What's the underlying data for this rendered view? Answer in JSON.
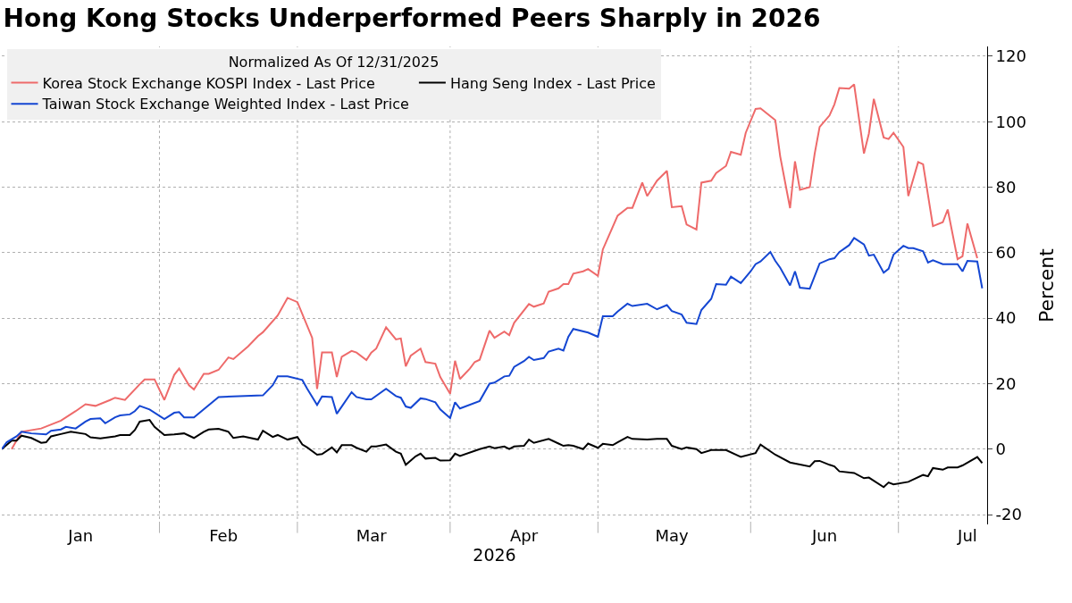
{
  "chart_data": {
    "type": "line",
    "title": "Hong Kong Stocks Underperformed Peers Sharply in 2026",
    "xlabel": "2026",
    "ylabel": "Percent",
    "legend_title": "Normalized As Of 12/31/2025",
    "legend": "top left",
    "grid": true,
    "line_style": "solid",
    "xlim": [
      "2025-12-31",
      "2026-07-19"
    ],
    "ylim": [
      -23,
      123
    ],
    "yticks": [
      -20,
      0,
      20,
      40,
      60,
      80,
      100,
      120
    ],
    "xticks": [
      {
        "value": "2026-01-16",
        "label": "Jan"
      },
      {
        "value": "2026-02-14",
        "label": "Feb"
      },
      {
        "value": "2026-03-16",
        "label": "Mar"
      },
      {
        "value": "2026-04-16",
        "label": "Apr"
      },
      {
        "value": "2026-05-16",
        "label": "May"
      },
      {
        "value": "2026-06-16",
        "label": "Jun"
      },
      {
        "value": "2026-07-15",
        "label": "Jul"
      },
      {
        "value": "2026-02-01",
        "label": null
      },
      {
        "value": "2026-03-01",
        "label": null
      },
      {
        "value": "2026-04-01",
        "label": null
      },
      {
        "value": "2026-05-01",
        "label": null
      },
      {
        "value": "2026-06-01",
        "label": null
      },
      {
        "value": "2026-07-01",
        "label": null
      }
    ],
    "series": [
      {
        "name": "Korea Stock Exchange KOSPI Index - Last Price",
        "color": "#ee6a6a",
        "x": [
          "2026-01-02",
          "2026-01-04",
          "2026-01-08",
          "2026-01-12",
          "2026-01-15",
          "2026-01-17",
          "2026-01-19",
          "2026-01-22",
          "2026-01-23",
          "2026-01-25",
          "2026-01-28",
          "2026-01-29",
          "2026-01-31",
          "2026-02-02",
          "2026-02-04",
          "2026-02-05",
          "2026-02-07",
          "2026-02-08",
          "2026-02-10",
          "2026-02-11",
          "2026-02-13",
          "2026-02-15",
          "2026-02-16",
          "2026-02-19",
          "2026-02-21",
          "2026-02-22",
          "2026-02-25",
          "2026-02-27",
          "2026-03-01",
          "2026-03-04",
          "2026-03-05",
          "2026-03-06",
          "2026-03-08",
          "2026-03-09",
          "2026-03-10",
          "2026-03-12",
          "2026-03-13",
          "2026-03-15",
          "2026-03-16",
          "2026-03-17",
          "2026-03-19",
          "2026-03-21",
          "2026-03-22",
          "2026-03-23",
          "2026-03-24",
          "2026-03-26",
          "2026-03-27",
          "2026-03-29",
          "2026-03-30",
          "2026-04-01",
          "2026-04-02",
          "2026-04-03",
          "2026-04-05",
          "2026-04-06",
          "2026-04-07",
          "2026-04-09",
          "2026-04-10",
          "2026-04-12",
          "2026-04-13",
          "2026-04-14",
          "2026-04-17",
          "2026-04-18",
          "2026-04-20",
          "2026-04-21",
          "2026-04-23",
          "2026-04-24",
          "2026-04-25",
          "2026-04-26",
          "2026-04-28",
          "2026-04-29",
          "2026-05-01",
          "2026-05-02",
          "2026-05-05",
          "2026-05-07",
          "2026-05-08",
          "2026-05-10",
          "2026-05-11",
          "2026-05-13",
          "2026-05-15",
          "2026-05-16",
          "2026-05-18",
          "2026-05-19",
          "2026-05-21",
          "2026-05-22",
          "2026-05-24",
          "2026-05-25",
          "2026-05-27",
          "2026-05-28",
          "2026-05-30",
          "2026-05-31",
          "2026-06-02",
          "2026-06-03",
          "2026-06-06",
          "2026-06-07",
          "2026-06-09",
          "2026-06-10",
          "2026-06-11",
          "2026-06-13",
          "2026-06-14",
          "2026-06-15",
          "2026-06-17",
          "2026-06-18",
          "2026-06-19",
          "2026-06-21",
          "2026-06-22",
          "2026-06-24",
          "2026-06-25",
          "2026-06-26",
          "2026-06-28",
          "2026-06-29",
          "2026-06-30",
          "2026-07-02",
          "2026-07-03",
          "2026-07-05",
          "2026-07-06",
          "2026-07-08",
          "2026-07-10",
          "2026-07-11",
          "2026-07-13",
          "2026-07-14",
          "2026-07-15",
          "2026-07-17"
        ],
        "values": [
          0,
          5.3,
          6.3,
          8.7,
          11.6,
          13.7,
          13.2,
          15,
          15.7,
          15,
          19.8,
          21.3,
          21.3,
          15,
          22.7,
          24.6,
          19.5,
          18.2,
          23,
          23,
          24.2,
          28,
          27.5,
          31.4,
          34.5,
          35.7,
          40.8,
          46.2,
          44.9,
          34,
          18.4,
          29.5,
          29.5,
          22,
          28.2,
          30,
          29.5,
          27.2,
          29.5,
          30.7,
          37.2,
          33.5,
          33.8,
          25.3,
          28.5,
          30.7,
          26.6,
          26.1,
          22,
          16.9,
          27,
          21.4,
          24.6,
          26.6,
          27.3,
          36.2,
          34,
          35.9,
          34.8,
          38.6,
          44.3,
          43.5,
          44.5,
          48.1,
          49.1,
          50.4,
          50.4,
          53.6,
          54.3,
          55,
          52.9,
          61,
          71.3,
          73.7,
          73.7,
          81.4,
          77.3,
          82,
          85,
          73.9,
          74.2,
          68.6,
          67.1,
          81.4,
          82,
          84.3,
          86.5,
          90.8,
          89.9,
          96.6,
          103.9,
          104.1,
          100.5,
          89.4,
          73.6,
          87.9,
          79.2,
          80,
          90.3,
          98.4,
          101.9,
          105.3,
          110.3,
          110.1,
          111.4,
          90.3,
          96.4,
          107,
          95.2,
          94.7,
          96.6,
          92.3,
          77.3,
          87.7,
          87,
          68.1,
          69.3,
          73.2,
          58,
          58.9,
          68.9,
          58.3
        ]
      },
      {
        "name": "Hang Seng Index - Last Price",
        "color": "#000000",
        "x": [
          "2025-12-31",
          "2026-01-02",
          "2026-01-03",
          "2026-01-04",
          "2026-01-06",
          "2026-01-08",
          "2026-01-09",
          "2026-01-10",
          "2026-01-12",
          "2026-01-14",
          "2026-01-17",
          "2026-01-18",
          "2026-01-20",
          "2026-01-23",
          "2026-01-24",
          "2026-01-26",
          "2026-01-27",
          "2026-01-28",
          "2026-01-30",
          "2026-01-31",
          "2026-02-02",
          "2026-02-04",
          "2026-02-06",
          "2026-02-08",
          "2026-02-10",
          "2026-02-11",
          "2026-02-13",
          "2026-02-15",
          "2026-02-16",
          "2026-02-18",
          "2026-02-21",
          "2026-02-22",
          "2026-02-24",
          "2026-02-25",
          "2026-02-27",
          "2026-03-01",
          "2026-03-02",
          "2026-03-03",
          "2026-03-05",
          "2026-03-06",
          "2026-03-08",
          "2026-03-09",
          "2026-03-10",
          "2026-03-12",
          "2026-03-13",
          "2026-03-15",
          "2026-03-16",
          "2026-03-17",
          "2026-03-19",
          "2026-03-21",
          "2026-03-22",
          "2026-03-23",
          "2026-03-25",
          "2026-03-26",
          "2026-03-27",
          "2026-03-29",
          "2026-03-30",
          "2026-04-01",
          "2026-04-02",
          "2026-04-03",
          "2026-04-07",
          "2026-04-09",
          "2026-04-10",
          "2026-04-12",
          "2026-04-13",
          "2026-04-14",
          "2026-04-16",
          "2026-04-17",
          "2026-04-18",
          "2026-04-21",
          "2026-04-23",
          "2026-04-24",
          "2026-04-25",
          "2026-04-26",
          "2026-04-28",
          "2026-04-29",
          "2026-05-01",
          "2026-05-02",
          "2026-05-04",
          "2026-05-05",
          "2026-05-07",
          "2026-05-08",
          "2026-05-11",
          "2026-05-13",
          "2026-05-15",
          "2026-05-16",
          "2026-05-18",
          "2026-05-19",
          "2026-05-21",
          "2026-05-22",
          "2026-05-24",
          "2026-05-27",
          "2026-05-30",
          "2026-06-02",
          "2026-06-03",
          "2026-06-06",
          "2026-06-09",
          "2026-06-13",
          "2026-06-14",
          "2026-06-15",
          "2026-06-17",
          "2026-06-18",
          "2026-06-19",
          "2026-06-22",
          "2026-06-24",
          "2026-06-25",
          "2026-06-28",
          "2026-06-29",
          "2026-06-30",
          "2026-07-03",
          "2026-07-06",
          "2026-07-07",
          "2026-07-08",
          "2026-07-10",
          "2026-07-11",
          "2026-07-13",
          "2026-07-14",
          "2026-07-17",
          "2026-07-18"
        ],
        "values": [
          0,
          2.6,
          2.6,
          4.1,
          3.4,
          1.9,
          2.1,
          3.9,
          4.6,
          5.3,
          4.6,
          3.6,
          3.3,
          3.9,
          4.3,
          4.3,
          5.8,
          8.4,
          8.9,
          6.8,
          4.3,
          4.5,
          4.8,
          3.4,
          5.3,
          6,
          6.2,
          5.3,
          3.4,
          3.9,
          2.9,
          5.6,
          3.7,
          4.3,
          2.9,
          3.7,
          1.4,
          0.5,
          -1.7,
          -1.5,
          0.5,
          -1,
          1.2,
          1.2,
          0.4,
          -0.8,
          0.8,
          0.8,
          1.4,
          -0.8,
          -1.4,
          -4.8,
          -2.2,
          -1.4,
          -2.9,
          -2.7,
          -3.5,
          -3.4,
          -1.4,
          -2.1,
          0,
          0.8,
          0.3,
          0.8,
          0,
          0.8,
          1,
          2.9,
          1.9,
          3.1,
          1.7,
          1,
          1.2,
          1,
          0,
          1.7,
          0.4,
          1.6,
          1.2,
          2.1,
          3.7,
          3.1,
          2.9,
          3.1,
          3.1,
          1,
          0,
          0.5,
          0,
          -1.2,
          -0.3,
          -0.3,
          -2.4,
          -1.2,
          1.4,
          -1.7,
          -4.1,
          -5.3,
          -3.7,
          -3.6,
          -4.8,
          -5.3,
          -6.8,
          -7.3,
          -8.9,
          -8.7,
          -11.6,
          -10.2,
          -10.8,
          -10,
          -7.9,
          -8.3,
          -5.8,
          -6.3,
          -5.6,
          -5.6,
          -5,
          -2.4,
          -4.3
        ]
      },
      {
        "name": "Taiwan Stock Exchange Weighted Index - Last Price",
        "color": "#1446d2",
        "x": [
          "2025-12-31",
          "2026-01-01",
          "2026-01-03",
          "2026-01-04",
          "2026-01-06",
          "2026-01-09",
          "2026-01-10",
          "2026-01-12",
          "2026-01-13",
          "2026-01-15",
          "2026-01-17",
          "2026-01-18",
          "2026-01-20",
          "2026-01-21",
          "2026-01-23",
          "2026-01-24",
          "2026-01-26",
          "2026-01-27",
          "2026-01-28",
          "2026-01-30",
          "2026-02-02",
          "2026-02-04",
          "2026-02-05",
          "2026-02-06",
          "2026-02-08",
          "2026-02-13",
          "2026-02-22",
          "2026-02-24",
          "2026-02-25",
          "2026-02-27",
          "2026-03-02",
          "2026-03-03",
          "2026-03-05",
          "2026-03-06",
          "2026-03-08",
          "2026-03-09",
          "2026-03-10",
          "2026-03-12",
          "2026-03-13",
          "2026-03-15",
          "2026-03-16",
          "2026-03-19",
          "2026-03-21",
          "2026-03-22",
          "2026-03-23",
          "2026-03-24",
          "2026-03-26",
          "2026-03-27",
          "2026-03-29",
          "2026-03-30",
          "2026-04-01",
          "2026-04-02",
          "2026-04-03",
          "2026-04-07",
          "2026-04-09",
          "2026-04-10",
          "2026-04-12",
          "2026-04-13",
          "2026-04-14",
          "2026-04-16",
          "2026-04-17",
          "2026-04-18",
          "2026-04-20",
          "2026-04-21",
          "2026-04-23",
          "2026-04-24",
          "2026-04-25",
          "2026-04-26",
          "2026-04-29",
          "2026-05-01",
          "2026-05-02",
          "2026-05-04",
          "2026-05-05",
          "2026-05-07",
          "2026-05-08",
          "2026-05-11",
          "2026-05-13",
          "2026-05-15",
          "2026-05-16",
          "2026-05-18",
          "2026-05-19",
          "2026-05-21",
          "2026-05-22",
          "2026-05-24",
          "2026-05-25",
          "2026-05-27",
          "2026-05-28",
          "2026-05-30",
          "2026-06-01",
          "2026-06-02",
          "2026-06-03",
          "2026-06-05",
          "2026-06-06",
          "2026-06-07",
          "2026-06-09",
          "2026-06-10",
          "2026-06-11",
          "2026-06-13",
          "2026-06-15",
          "2026-06-17",
          "2026-06-18",
          "2026-06-19",
          "2026-06-21",
          "2026-06-22",
          "2026-06-24",
          "2026-06-25",
          "2026-06-26",
          "2026-06-28",
          "2026-06-29",
          "2026-06-30",
          "2026-07-02",
          "2026-07-03",
          "2026-07-04",
          "2026-07-06",
          "2026-07-07",
          "2026-07-08",
          "2026-07-10",
          "2026-07-13",
          "2026-07-14",
          "2026-07-15",
          "2026-07-17",
          "2026-07-18"
        ],
        "values": [
          0,
          2.1,
          3.9,
          5.3,
          4.8,
          4.5,
          5.6,
          6,
          6.8,
          6.3,
          8.4,
          9.2,
          9.4,
          7.9,
          9.7,
          10.3,
          10.6,
          11.6,
          13.2,
          12.1,
          9.2,
          11.1,
          11.3,
          9.7,
          9.7,
          15.9,
          16.4,
          19.5,
          22.2,
          22.2,
          21.1,
          18.4,
          13.5,
          16.1,
          15.9,
          10.8,
          13,
          17.4,
          15.9,
          15.2,
          15.2,
          18.4,
          16.2,
          15.7,
          13,
          12.6,
          15.5,
          15.3,
          14.3,
          12.1,
          9.5,
          14.3,
          12.4,
          14.7,
          20,
          20.3,
          22.2,
          22.4,
          25.1,
          26.9,
          28.2,
          27.2,
          27.8,
          29.8,
          30.7,
          30.1,
          34.3,
          36.7,
          35.6,
          34.3,
          40.6,
          40.6,
          42,
          44.4,
          43.7,
          44.4,
          42.7,
          44,
          42.2,
          41.1,
          38.6,
          38.2,
          42.5,
          45.9,
          50.4,
          50.2,
          52.7,
          50.7,
          54.3,
          56.5,
          57.3,
          60.2,
          57.5,
          55.4,
          50,
          54.3,
          49.3,
          49,
          56.7,
          58,
          58.3,
          60.2,
          62.3,
          64.5,
          62.5,
          59.1,
          59.4,
          53.9,
          55.1,
          59.4,
          62.1,
          61.4,
          61.4,
          60.4,
          57,
          57.7,
          56.5,
          56.5,
          54.3,
          57.5,
          57.3,
          49.1
        ]
      }
    ]
  }
}
